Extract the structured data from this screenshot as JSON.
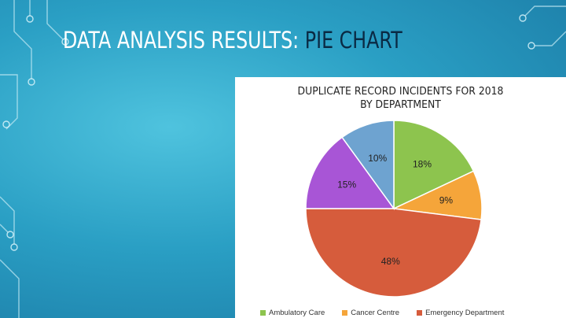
{
  "slide": {
    "title_main": "DATA ANALYSIS RESULTS: ",
    "title_accent": "PIE CHART"
  },
  "colors": {
    "Ambulatory Care": "#8dc44e",
    "Cancer Centre": "#f5a53a",
    "Emergency Department": "#d65c3c",
    "slice4": "#a855d6",
    "slice5": "#6ea3d0"
  },
  "chart_data": {
    "type": "pie",
    "title_lines": [
      "DUPLICATE RECORD INCIDENTS FOR 2018",
      "BY DEPARTMENT"
    ],
    "slices": [
      {
        "name": "Ambulatory Care",
        "value": 18,
        "label": "18%"
      },
      {
        "name": "Cancer Centre",
        "value": 9,
        "label": "9%"
      },
      {
        "name": "Emergency Department",
        "value": 48,
        "label": "48%"
      },
      {
        "name": "",
        "value": 15,
        "label": "15%"
      },
      {
        "name": "",
        "value": 10,
        "label": "10%"
      }
    ],
    "legend": [
      "Ambulatory Care",
      "Cancer Centre",
      "Emergency Department"
    ],
    "legend_position": "bottom"
  }
}
